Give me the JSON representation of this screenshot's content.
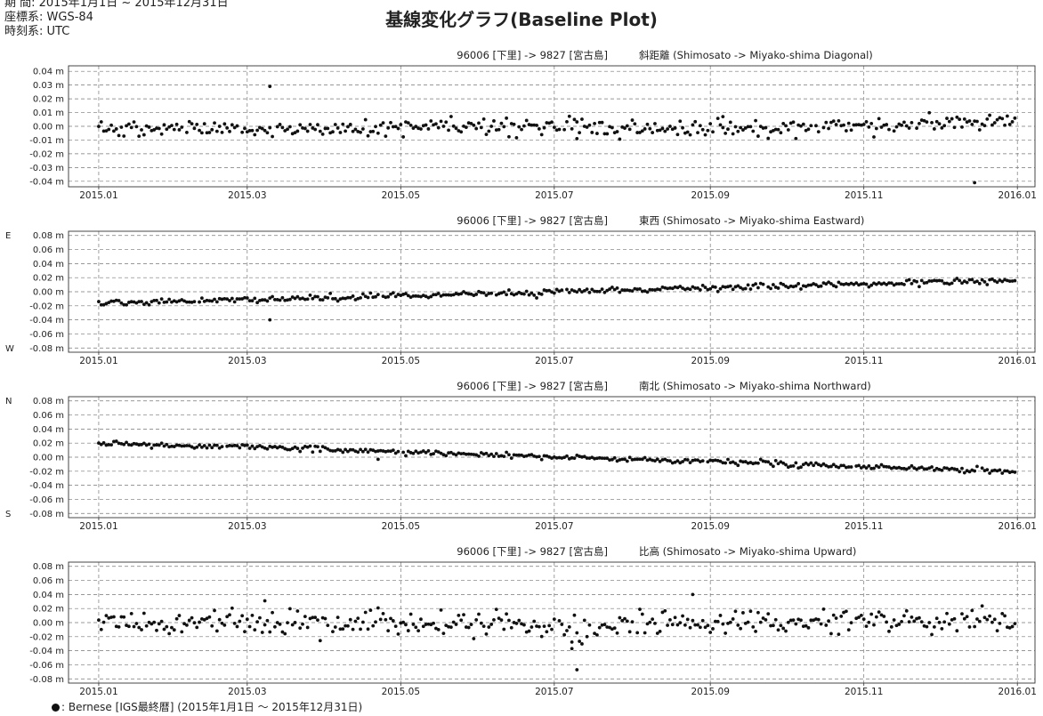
{
  "meta": {
    "period": "期 間: 2015年1月1日 ~ 2015年12月31日",
    "coord_system": "座標系: WGS-84",
    "time_system": "時刻系: UTC"
  },
  "page_title": "基線変化グラフ(Baseline Plot)",
  "legend": {
    "marker": "●",
    "text": ": Bernese [IGS最終暦] (2015年1月1日 ～ 2015年12月31日)"
  },
  "colors": {
    "points": "#111111",
    "grid": "#777777",
    "frame": "#333333"
  },
  "chart_data": [
    {
      "type": "scatter",
      "baseline": "96006 [下里] -> 9827 [宮古島]",
      "component": "斜距離  (Shimosato -> Miyako-shima Diagonal)",
      "x_range": [
        "2014-12-20",
        "2016-01-08"
      ],
      "x_ticks": [
        "2015.01",
        "2015.03",
        "2015.05",
        "2015.07",
        "2015.09",
        "2015.11",
        "2016.01"
      ],
      "y_ticks": [
        "0.04 m",
        "0.03 m",
        "0.02 m",
        "0.01 m",
        "0.00 m",
        "-0.01 m",
        "-0.02 m",
        "-0.03 m",
        "-0.04 m"
      ],
      "y_tick_values": [
        0.04,
        0.03,
        0.02,
        0.01,
        0.0,
        -0.01,
        -0.02,
        -0.03,
        -0.04
      ],
      "ylim": [
        -0.044,
        0.044
      ],
      "dir_top": "",
      "dir_bottom": "",
      "grid": true,
      "trend": [
        {
          "x": "2015-01-01",
          "y": -0.002
        },
        {
          "x": "2015-03-01",
          "y": -0.002
        },
        {
          "x": "2015-07-01",
          "y": 0.0
        },
        {
          "x": "2015-08-15",
          "y": -0.003
        },
        {
          "x": "2015-09-15",
          "y": -0.002
        },
        {
          "x": "2016-01-01",
          "y": 0.004
        }
      ],
      "scatter_sd": 0.0028,
      "outliers": [
        {
          "x": "2015-03-10",
          "y": 0.029
        },
        {
          "x": "2015-12-15",
          "y": -0.041
        },
        {
          "x": "2015-07-10",
          "y": -0.009
        },
        {
          "x": "2015-09-06",
          "y": 0.007
        }
      ]
    },
    {
      "type": "scatter",
      "baseline": "96006 [下里] -> 9827 [宮古島]",
      "component": "東西  (Shimosato -> Miyako-shima Eastward)",
      "x_range": [
        "2014-12-20",
        "2016-01-08"
      ],
      "x_ticks": [
        "2015.01",
        "2015.03",
        "2015.05",
        "2015.07",
        "2015.09",
        "2015.11",
        "2016.01"
      ],
      "y_ticks": [
        "0.08 m",
        "0.06 m",
        "0.04 m",
        "0.02 m",
        "0.00 m",
        "-0.02 m",
        "-0.04 m",
        "-0.06 m",
        "-0.08 m"
      ],
      "y_tick_values": [
        0.08,
        0.06,
        0.04,
        0.02,
        0.0,
        -0.02,
        -0.04,
        -0.06,
        -0.08
      ],
      "ylim": [
        -0.086,
        0.086
      ],
      "dir_top": "E",
      "dir_bottom": "W",
      "grid": true,
      "trend": [
        {
          "x": "2015-01-01",
          "y": -0.016
        },
        {
          "x": "2015-03-01",
          "y": -0.011
        },
        {
          "x": "2015-05-01",
          "y": -0.006
        },
        {
          "x": "2015-07-01",
          "y": -0.001
        },
        {
          "x": "2015-09-01",
          "y": 0.006
        },
        {
          "x": "2015-11-01",
          "y": 0.011
        },
        {
          "x": "2016-01-01",
          "y": 0.016
        }
      ],
      "scatter_sd": 0.002,
      "outliers": [
        {
          "x": "2015-03-10",
          "y": -0.04
        }
      ]
    },
    {
      "type": "scatter",
      "baseline": "96006 [下里] -> 9827 [宮古島]",
      "component": "南北  (Shimosato -> Miyako-shima Northward)",
      "x_range": [
        "2014-12-20",
        "2016-01-08"
      ],
      "x_ticks": [
        "2015.01",
        "2015.03",
        "2015.05",
        "2015.07",
        "2015.09",
        "2015.11",
        "2016.01"
      ],
      "y_ticks": [
        "0.08 m",
        "0.06 m",
        "0.04 m",
        "0.02 m",
        "0.00 m",
        "-0.02 m",
        "-0.04 m",
        "-0.06 m",
        "-0.08 m"
      ],
      "y_tick_values": [
        0.08,
        0.06,
        0.04,
        0.02,
        0.0,
        -0.02,
        -0.04,
        -0.06,
        -0.08
      ],
      "ylim": [
        -0.086,
        0.086
      ],
      "dir_top": "N",
      "dir_bottom": "S",
      "grid": true,
      "trend": [
        {
          "x": "2015-01-01",
          "y": 0.019
        },
        {
          "x": "2015-03-01",
          "y": 0.015
        },
        {
          "x": "2015-05-01",
          "y": 0.008
        },
        {
          "x": "2015-07-01",
          "y": 0.0
        },
        {
          "x": "2015-09-01",
          "y": -0.006
        },
        {
          "x": "2015-11-01",
          "y": -0.013
        },
        {
          "x": "2016-01-01",
          "y": -0.021
        }
      ],
      "scatter_sd": 0.0018,
      "outliers": [
        {
          "x": "2015-04-22",
          "y": -0.003
        }
      ]
    },
    {
      "type": "scatter",
      "baseline": "96006 [下里] -> 9827 [宮古島]",
      "component": "比高  (Shimosato -> Miyako-shima Upward)",
      "x_range": [
        "2014-12-20",
        "2016-01-08"
      ],
      "x_ticks": [
        "2015.01",
        "2015.03",
        "2015.05",
        "2015.07",
        "2015.09",
        "2015.11",
        "2016.01"
      ],
      "y_ticks": [
        "0.08 m",
        "0.06 m",
        "0.04 m",
        "0.02 m",
        "0.00 m",
        "-0.02 m",
        "-0.04 m",
        "-0.06 m",
        "-0.08 m"
      ],
      "y_tick_values": [
        0.08,
        0.06,
        0.04,
        0.02,
        0.0,
        -0.02,
        -0.04,
        -0.06,
        -0.08
      ],
      "ylim": [
        -0.086,
        0.086
      ],
      "dir_top": "",
      "dir_bottom": "",
      "grid": true,
      "trend": [
        {
          "x": "2015-01-01",
          "y": 0.0
        },
        {
          "x": "2015-06-15",
          "y": 0.0
        },
        {
          "x": "2015-07-08",
          "y": -0.015
        },
        {
          "x": "2015-08-01",
          "y": 0.0
        },
        {
          "x": "2016-01-01",
          "y": 0.003
        }
      ],
      "scatter_sd": 0.0085,
      "outliers": [
        {
          "x": "2015-03-08",
          "y": 0.031
        },
        {
          "x": "2015-07-10",
          "y": -0.067
        },
        {
          "x": "2015-08-25",
          "y": 0.04
        },
        {
          "x": "2015-07-08",
          "y": -0.037
        }
      ]
    }
  ]
}
